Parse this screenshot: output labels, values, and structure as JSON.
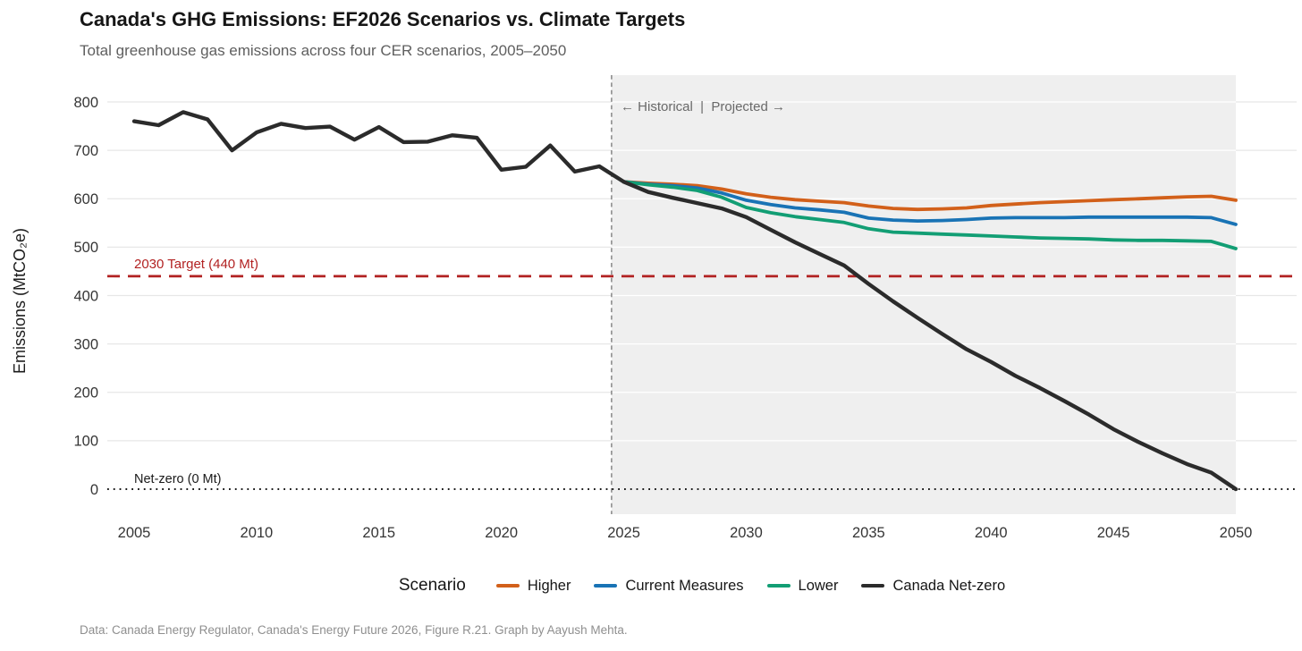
{
  "header": {
    "title": "Canada's GHG Emissions: EF2026 Scenarios vs. Climate Targets",
    "subtitle": "Total greenhouse gas emissions across four CER scenarios, 2005–2050"
  },
  "axes": {
    "y_title": "Emissions (MtCO₂e)",
    "y_ticks": [
      0,
      100,
      200,
      300,
      400,
      500,
      600,
      700,
      800
    ],
    "x_ticks": [
      2005,
      2010,
      2015,
      2020,
      2025,
      2030,
      2035,
      2040,
      2045,
      2050
    ]
  },
  "annotations": {
    "phase_label": "← Historical  |  Projected →",
    "target_label": "2030 Target (440 Mt)",
    "netzero_label": "Net-zero (0 Mt)"
  },
  "legend": {
    "title": "Scenario",
    "items": [
      {
        "label": "Higher",
        "color": "#D2601A"
      },
      {
        "label": "Current Measures",
        "color": "#1973B5"
      },
      {
        "label": "Lower",
        "color": "#129E74"
      },
      {
        "label": "Canada Net-zero",
        "color": "#2B2B2B"
      }
    ]
  },
  "footer": {
    "caption": "Data: Canada Energy Regulator, Canada's Energy Future 2026, Figure R.21. Graph by Aayush Mehta."
  },
  "colors": {
    "target_line": "#B22222",
    "netzero_line": "#1A1A1A",
    "grid_outside": "#E7E7E7",
    "grid_inside": "#FFFFFF",
    "projection_shading": "#EFEFEF",
    "divider": "#878787"
  },
  "chart_data": {
    "type": "line",
    "title": "Canada's GHG Emissions: EF2026 Scenarios vs. Climate Targets",
    "xlabel": "",
    "ylabel": "Emissions (MtCO₂e)",
    "xlim": [
      2003.9,
      2052.5
    ],
    "ylim": [
      0,
      855
    ],
    "grid": "horizontal",
    "legend_position": "bottom",
    "divider_year": 2024.5,
    "shaded_region": {
      "from": 2024.5,
      "to": 2050
    },
    "reference_lines": [
      {
        "label": "2030 Target (440 Mt)",
        "value": 440,
        "color": "#B22222",
        "style": "dashed"
      },
      {
        "label": "Net-zero (0 Mt)",
        "value": 0,
        "color": "#1A1A1A",
        "style": "dotted"
      }
    ],
    "series": [
      {
        "name": "Higher",
        "color": "#D2601A",
        "x_start": 2024,
        "x_step": 1,
        "values": [
          667,
          635,
          632,
          630,
          627,
          620,
          610,
          603,
          598,
          595,
          592,
          585,
          580,
          578,
          579,
          581,
          586,
          589,
          592,
          594,
          596,
          598,
          600,
          602,
          604,
          605,
          597
        ]
      },
      {
        "name": "Current Measures",
        "color": "#1973B5",
        "x_start": 2024,
        "x_step": 1,
        "values": [
          667,
          635,
          630,
          627,
          622,
          612,
          597,
          588,
          581,
          577,
          572,
          560,
          556,
          554,
          555,
          557,
          560,
          561,
          561,
          561,
          562,
          562,
          562,
          562,
          562,
          561,
          547
        ]
      },
      {
        "name": "Lower",
        "color": "#129E74",
        "x_start": 2024,
        "x_step": 1,
        "values": [
          667,
          635,
          629,
          624,
          617,
          603,
          582,
          571,
          563,
          557,
          551,
          538,
          531,
          529,
          527,
          525,
          523,
          521,
          519,
          518,
          517,
          515,
          514,
          514,
          513,
          512,
          497
        ]
      },
      {
        "name": "Canada Net-zero",
        "color": "#2B2B2B",
        "x_start": 2025,
        "x_step": 1,
        "values": [
          635,
          614,
          602,
          591,
          580,
          562,
          536,
          510,
          486,
          462,
          424,
          388,
          354,
          321,
          289,
          263,
          234,
          209,
          182,
          154,
          124,
          98,
          74,
          52,
          34,
          0
        ]
      },
      {
        "name": "Historical",
        "color": "#2B2B2B",
        "x_start": 2005,
        "x_step": 1,
        "values": [
          760,
          752,
          779,
          764,
          700,
          737,
          755,
          746,
          749,
          722,
          748,
          717,
          718,
          731,
          726,
          660,
          666,
          710,
          656,
          667,
          635
        ]
      }
    ]
  }
}
